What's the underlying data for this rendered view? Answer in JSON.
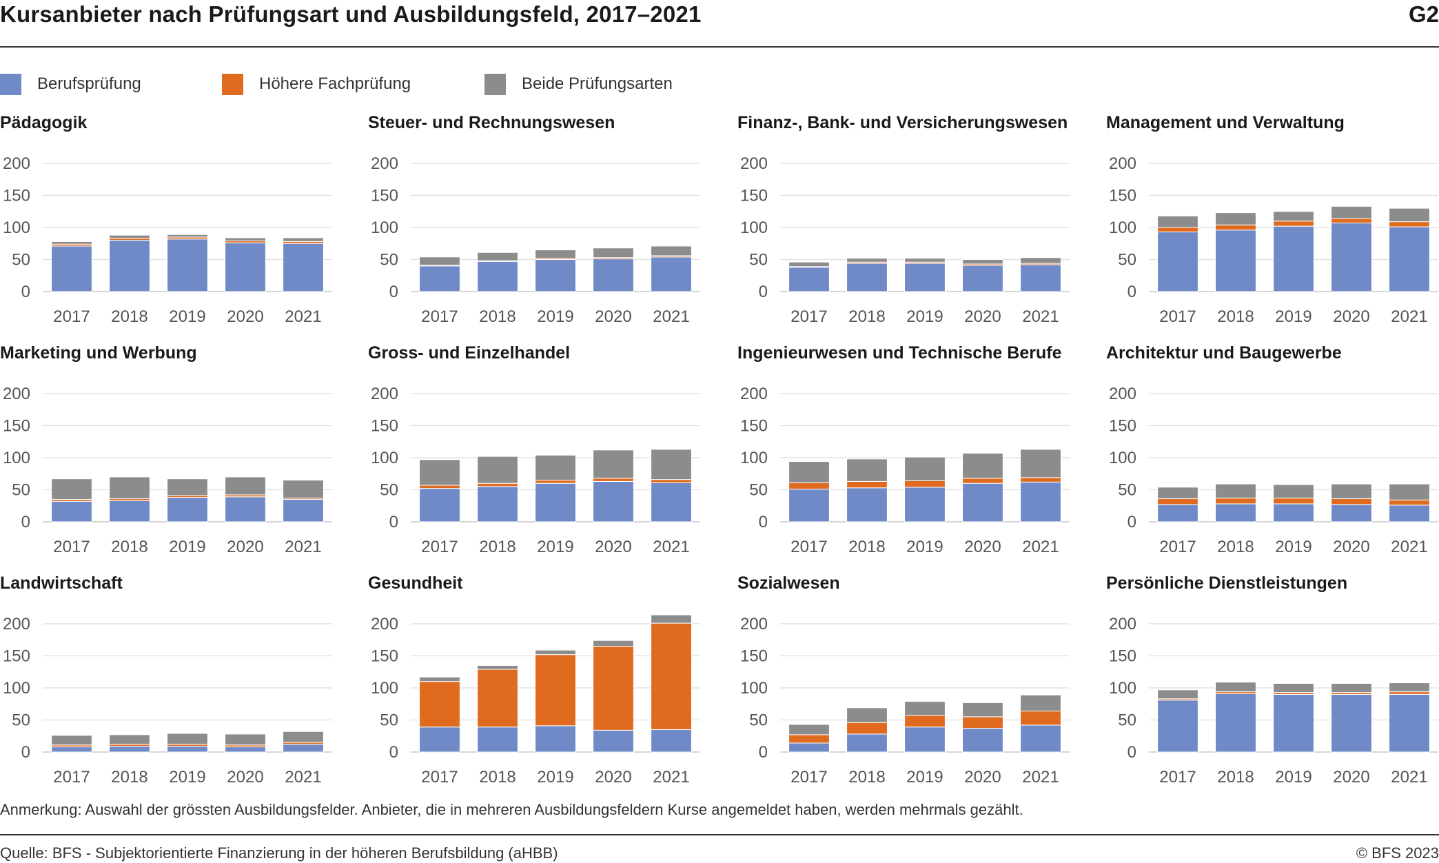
{
  "header": {
    "title": "Kursanbieter nach Prüfungsart und Ausbildungsfeld, 2017–2021",
    "graphic_number": "G2"
  },
  "legend": [
    {
      "label": "Berufsprüfung",
      "color": "#6f8ac6"
    },
    {
      "label": "Höhere Fachprüfung",
      "color": "#e06a1e"
    },
    {
      "label": "Beide Prüfungsarten",
      "color": "#8c8c8c"
    }
  ],
  "footer": {
    "note": "Anmerkung: Auswahl der grössten Ausbildungsfelder. Anbieter, die in mehreren Ausbildungsfeldern Kurse angemeldet haben, werden mehrmals gezählt.",
    "source": "Quelle: BFS - Subjektorientierte Finanzierung in der höheren Berufsbildung (aHBB)",
    "copyright": "© BFS 2023"
  },
  "chart_data": [
    {
      "type": "bar",
      "stacked": true,
      "title": "Pädagogik",
      "categories": [
        "2017",
        "2018",
        "2019",
        "2020",
        "2021"
      ],
      "ylim": [
        0,
        200
      ],
      "yticks": [
        0,
        50,
        100,
        150,
        200
      ],
      "grid": true,
      "series": [
        {
          "name": "Berufsprüfung",
          "values": [
            71,
            80,
            82,
            76,
            75
          ]
        },
        {
          "name": "Höhere Fachprüfung",
          "values": [
            3,
            3,
            3,
            3,
            3
          ]
        },
        {
          "name": "Beide Prüfungsarten",
          "values": [
            4,
            5,
            4,
            5,
            6
          ]
        }
      ]
    },
    {
      "type": "bar",
      "stacked": true,
      "title": "Steuer- und Rechnungswesen",
      "categories": [
        "2017",
        "2018",
        "2019",
        "2020",
        "2021"
      ],
      "ylim": [
        0,
        200
      ],
      "yticks": [
        0,
        50,
        100,
        150,
        200
      ],
      "grid": true,
      "series": [
        {
          "name": "Berufsprüfung",
          "values": [
            40,
            47,
            50,
            51,
            54
          ]
        },
        {
          "name": "Höhere Fachprüfung",
          "values": [
            1,
            1,
            2,
            2,
            2
          ]
        },
        {
          "name": "Beide Prüfungsarten",
          "values": [
            13,
            13,
            13,
            15,
            15
          ]
        }
      ]
    },
    {
      "type": "bar",
      "stacked": true,
      "title": "Finanz-, Bank- und Versicherungswesen",
      "categories": [
        "2017",
        "2018",
        "2019",
        "2020",
        "2021"
      ],
      "ylim": [
        0,
        200
      ],
      "yticks": [
        0,
        50,
        100,
        150,
        200
      ],
      "grid": true,
      "series": [
        {
          "name": "Berufsprüfung",
          "values": [
            38,
            44,
            44,
            41,
            42
          ]
        },
        {
          "name": "Höhere Fachprüfung",
          "values": [
            1,
            2,
            2,
            2,
            2
          ]
        },
        {
          "name": "Beide Prüfungsarten",
          "values": [
            7,
            6,
            6,
            7,
            9
          ]
        }
      ]
    },
    {
      "type": "bar",
      "stacked": true,
      "title": "Management und Verwaltung",
      "categories": [
        "2017",
        "2018",
        "2019",
        "2020",
        "2021"
      ],
      "ylim": [
        0,
        200
      ],
      "yticks": [
        0,
        50,
        100,
        150,
        200
      ],
      "grid": true,
      "series": [
        {
          "name": "Berufsprüfung",
          "values": [
            93,
            96,
            102,
            107,
            101
          ]
        },
        {
          "name": "Höhere Fachprüfung",
          "values": [
            7,
            8,
            8,
            7,
            8
          ]
        },
        {
          "name": "Beide Prüfungsarten",
          "values": [
            18,
            19,
            15,
            19,
            21
          ]
        }
      ]
    },
    {
      "type": "bar",
      "stacked": true,
      "title": "Marketing und Werbung",
      "categories": [
        "2017",
        "2018",
        "2019",
        "2020",
        "2021"
      ],
      "ylim": [
        0,
        200
      ],
      "yticks": [
        0,
        50,
        100,
        150,
        200
      ],
      "grid": true,
      "series": [
        {
          "name": "Berufsprüfung",
          "values": [
            32,
            33,
            38,
            39,
            35
          ]
        },
        {
          "name": "Höhere Fachprüfung",
          "values": [
            3,
            3,
            3,
            3,
            2
          ]
        },
        {
          "name": "Beide Prüfungsarten",
          "values": [
            32,
            34,
            26,
            28,
            28
          ]
        }
      ]
    },
    {
      "type": "bar",
      "stacked": true,
      "title": "Gross- und Einzelhandel",
      "categories": [
        "2017",
        "2018",
        "2019",
        "2020",
        "2021"
      ],
      "ylim": [
        0,
        200
      ],
      "yticks": [
        0,
        50,
        100,
        150,
        200
      ],
      "grid": true,
      "series": [
        {
          "name": "Berufsprüfung",
          "values": [
            52,
            55,
            60,
            63,
            61
          ]
        },
        {
          "name": "Höhere Fachprüfung",
          "values": [
            5,
            5,
            5,
            5,
            5
          ]
        },
        {
          "name": "Beide Prüfungsarten",
          "values": [
            40,
            42,
            39,
            44,
            47
          ]
        }
      ]
    },
    {
      "type": "bar",
      "stacked": true,
      "title": "Ingenieurwesen und Technische Berufe",
      "categories": [
        "2017",
        "2018",
        "2019",
        "2020",
        "2021"
      ],
      "ylim": [
        0,
        200
      ],
      "yticks": [
        0,
        50,
        100,
        150,
        200
      ],
      "grid": true,
      "series": [
        {
          "name": "Berufsprüfung",
          "values": [
            51,
            53,
            54,
            60,
            62
          ]
        },
        {
          "name": "Höhere Fachprüfung",
          "values": [
            10,
            10,
            10,
            8,
            7
          ]
        },
        {
          "name": "Beide Prüfungsarten",
          "values": [
            33,
            35,
            37,
            39,
            44
          ]
        }
      ]
    },
    {
      "type": "bar",
      "stacked": true,
      "title": "Architektur und Baugewerbe",
      "categories": [
        "2017",
        "2018",
        "2019",
        "2020",
        "2021"
      ],
      "ylim": [
        0,
        200
      ],
      "yticks": [
        0,
        50,
        100,
        150,
        200
      ],
      "grid": true,
      "series": [
        {
          "name": "Berufsprüfung",
          "values": [
            27,
            28,
            28,
            27,
            26
          ]
        },
        {
          "name": "Höhere Fachprüfung",
          "values": [
            9,
            9,
            9,
            9,
            8
          ]
        },
        {
          "name": "Beide Prüfungsarten",
          "values": [
            18,
            22,
            21,
            23,
            25
          ]
        }
      ]
    },
    {
      "type": "bar",
      "stacked": true,
      "title": "Landwirtschaft",
      "categories": [
        "2017",
        "2018",
        "2019",
        "2020",
        "2021"
      ],
      "ylim": [
        0,
        200
      ],
      "yticks": [
        0,
        50,
        100,
        150,
        200
      ],
      "grid": true,
      "series": [
        {
          "name": "Berufsprüfung",
          "values": [
            8,
            9,
            9,
            8,
            12
          ]
        },
        {
          "name": "Höhere Fachprüfung",
          "values": [
            3,
            3,
            3,
            3,
            3
          ]
        },
        {
          "name": "Beide Prüfungsarten",
          "values": [
            15,
            15,
            17,
            17,
            17
          ]
        }
      ]
    },
    {
      "type": "bar",
      "stacked": true,
      "title": "Gesundheit",
      "categories": [
        "2017",
        "2018",
        "2019",
        "2020",
        "2021"
      ],
      "ylim": [
        0,
        200
      ],
      "yticks": [
        0,
        50,
        100,
        150,
        200
      ],
      "grid": true,
      "series": [
        {
          "name": "Berufsprüfung",
          "values": [
            39,
            39,
            41,
            34,
            35
          ]
        },
        {
          "name": "Höhere Fachprüfung",
          "values": [
            71,
            90,
            111,
            131,
            166
          ]
        },
        {
          "name": "Beide Prüfungsarten",
          "values": [
            7,
            6,
            7,
            9,
            13
          ]
        }
      ]
    },
    {
      "type": "bar",
      "stacked": true,
      "title": "Sozialwesen",
      "categories": [
        "2017",
        "2018",
        "2019",
        "2020",
        "2021"
      ],
      "ylim": [
        0,
        200
      ],
      "yticks": [
        0,
        50,
        100,
        150,
        200
      ],
      "grid": true,
      "series": [
        {
          "name": "Berufsprüfung",
          "values": [
            14,
            28,
            39,
            37,
            42
          ]
        },
        {
          "name": "Höhere Fachprüfung",
          "values": [
            13,
            18,
            18,
            18,
            22
          ]
        },
        {
          "name": "Beide Prüfungsarten",
          "values": [
            16,
            23,
            22,
            22,
            25
          ]
        }
      ]
    },
    {
      "type": "bar",
      "stacked": true,
      "title": "Persönliche Dienstleistungen",
      "categories": [
        "2017",
        "2018",
        "2019",
        "2020",
        "2021"
      ],
      "ylim": [
        0,
        200
      ],
      "yticks": [
        0,
        50,
        100,
        150,
        200
      ],
      "grid": true,
      "series": [
        {
          "name": "Berufsprüfung",
          "values": [
            81,
            91,
            90,
            90,
            90
          ]
        },
        {
          "name": "Höhere Fachprüfung",
          "values": [
            2,
            3,
            3,
            3,
            4
          ]
        },
        {
          "name": "Beide Prüfungsarten",
          "values": [
            14,
            15,
            14,
            14,
            14
          ]
        }
      ]
    }
  ]
}
